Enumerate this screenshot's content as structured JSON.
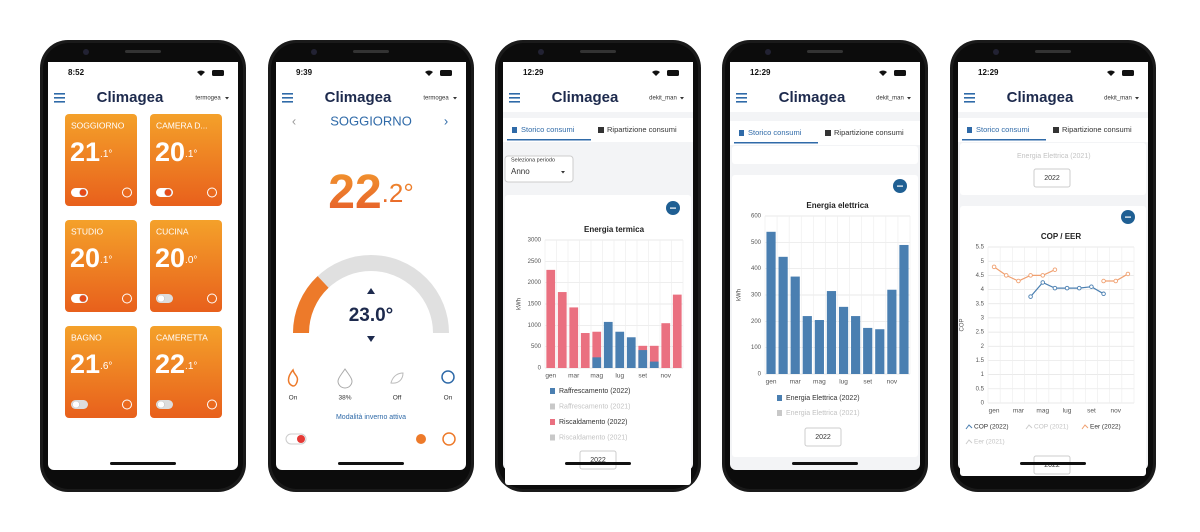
{
  "phones": [
    {
      "time": "8:52",
      "brand": "Climagea",
      "user": "termogea",
      "rooms": [
        {
          "name": "SOGGIORNO",
          "temp": "21",
          "decimal": ".1°",
          "toggle": true
        },
        {
          "name": "CAMERA D...",
          "temp": "20",
          "decimal": ".1°",
          "toggle": true
        },
        {
          "name": "STUDIO",
          "temp": "20",
          "decimal": ".1°",
          "toggle": true
        },
        {
          "name": "CUCINA",
          "temp": "20",
          "decimal": ".0°",
          "toggle": false
        },
        {
          "name": "BAGNO",
          "temp": "21",
          "decimal": ".6°",
          "toggle": false
        },
        {
          "name": "CAMERETTA",
          "temp": "22",
          "decimal": ".1°",
          "toggle": false
        }
      ]
    },
    {
      "time": "9:39",
      "brand": "Climagea",
      "user": "termogea",
      "room": "SOGGIORNO",
      "temp": "22",
      "decimal": ".2°",
      "setpoint": "23.0°",
      "modes": [
        "On",
        "38%",
        "Off",
        "On"
      ],
      "status": "Modalità inverno attiva"
    },
    {
      "time": "12:29",
      "brand": "Climagea",
      "user": "dekit_man",
      "tabs": [
        "Storico consumi",
        "Ripartizione consumi"
      ],
      "period_label": "Seleziona periodo",
      "period": "Anno",
      "year_button": "2022",
      "chart": {
        "type": "bar",
        "title": "Energia termica",
        "y_label": "kWh",
        "categories": [
          "gen",
          null,
          "mar",
          null,
          "mag",
          null,
          "lug",
          null,
          "set",
          null,
          "nov",
          null
        ],
        "series": [
          {
            "name": "Raffrescamento (2022)",
            "color": "#4a7fb1",
            "values": [
              0,
              0,
              0,
              0,
              250,
              1080,
              850,
              720,
              420,
              150,
              0,
              0
            ]
          },
          {
            "name": "Raffrescamento (2021)",
            "visible": false
          },
          {
            "name": "Riscaldamento (2022)",
            "color": "#ea7080",
            "values": [
              2300,
              1780,
              1420,
              820,
              850,
              0,
              0,
              0,
              520,
              520,
              1050,
              1720
            ]
          },
          {
            "name": "Riscaldamento (2021)",
            "visible": false
          }
        ],
        "ylim": [
          0,
          3000
        ],
        "yticks": [
          0,
          500,
          1000,
          1500,
          2000,
          2500,
          3000
        ]
      }
    },
    {
      "time": "12:29",
      "brand": "Climagea",
      "user": "dekit_man",
      "tabs": [
        "Storico consumi",
        "Ripartizione consumi"
      ],
      "year_button": "2022",
      "chart": {
        "type": "bar",
        "title": "Energia elettrica",
        "y_label": "kWh",
        "categories": [
          "gen",
          null,
          "mar",
          null,
          "mag",
          null,
          "lug",
          null,
          "set",
          null,
          "nov",
          null
        ],
        "series": [
          {
            "name": "Energia Elettrica (2022)",
            "color": "#4a7fb1",
            "values": [
              540,
              445,
              370,
              220,
              205,
              315,
              255,
              220,
              175,
              170,
              320,
              490
            ]
          },
          {
            "name": "Energia Elettrica (2021)",
            "visible": false
          }
        ],
        "ylim": [
          0,
          600
        ],
        "yticks": [
          0,
          100,
          200,
          300,
          400,
          500,
          600
        ]
      }
    },
    {
      "time": "12:29",
      "brand": "Climagea",
      "user": "dekit_man",
      "tabs": [
        "Storico consumi",
        "Ripartizione consumi"
      ],
      "previous_legend": "Energia Elettrica (2021)",
      "previous_year": "2022",
      "year_button": "2022",
      "chart": {
        "type": "line",
        "title": "COP / EER",
        "y_label": "COP",
        "categories": [
          "gen",
          null,
          "mar",
          null,
          "mag",
          null,
          "lug",
          null,
          "set",
          null,
          "nov",
          null
        ],
        "series": [
          {
            "name": "COP (2022)",
            "color": "#4a7fb1",
            "values": [
              null,
              null,
              null,
              3.75,
              4.25,
              4.05,
              4.05,
              4.05,
              4.1,
              3.85,
              null,
              null
            ]
          },
          {
            "name": "COP (2021)",
            "visible": false
          },
          {
            "name": "Eer (2022)",
            "color": "#f0a070",
            "values": [
              4.8,
              4.5,
              4.3,
              4.5,
              4.5,
              4.7,
              null,
              null,
              null,
              4.3,
              4.3,
              4.55
            ]
          },
          {
            "name": "Eer (2021)",
            "visible": false
          }
        ],
        "ylim": [
          0,
          5.5
        ],
        "yticks": [
          0,
          0.5,
          1,
          1.5,
          2,
          2.5,
          3,
          3.5,
          4,
          4.5,
          5,
          5.5
        ]
      }
    }
  ]
}
